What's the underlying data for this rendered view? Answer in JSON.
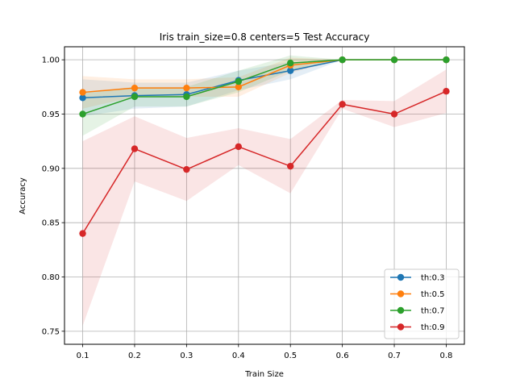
{
  "chart_data": {
    "type": "line",
    "title": "Iris train_size=0.8 centers=5 Test Accuracy",
    "xlabel": "Train Size",
    "ylabel": "Accuracy",
    "x": [
      0.1,
      0.2,
      0.3,
      0.4,
      0.5,
      0.6,
      0.7,
      0.8
    ],
    "x_ticks": [
      "0.1",
      "0.2",
      "0.3",
      "0.4",
      "0.5",
      "0.6",
      "0.7",
      "0.8"
    ],
    "y_ticks": [
      "0.75",
      "0.80",
      "0.85",
      "0.90",
      "0.95",
      "1.00"
    ],
    "y_tick_values": [
      0.75,
      0.8,
      0.85,
      0.9,
      0.95,
      1.0
    ],
    "xlim": [
      0.065,
      0.835
    ],
    "ylim": [
      0.738,
      1.012
    ],
    "grid": true,
    "legend_position": "lower-right",
    "series": [
      {
        "name": "th:0.3",
        "color": "#1f77b4",
        "values": [
          0.965,
          0.967,
          0.968,
          0.981,
          0.99,
          1.0,
          1.0,
          1.0
        ],
        "lower": [
          0.948,
          0.955,
          0.957,
          0.972,
          0.982,
          1.0,
          1.0,
          1.0
        ],
        "upper": [
          0.982,
          0.979,
          0.979,
          0.99,
          0.998,
          1.0,
          1.0,
          1.0
        ]
      },
      {
        "name": "th:0.5",
        "color": "#ff7f0e",
        "values": [
          0.97,
          0.974,
          0.974,
          0.975,
          0.995,
          1.0,
          1.0,
          1.0
        ],
        "lower": [
          0.955,
          0.966,
          0.966,
          0.966,
          0.988,
          1.0,
          1.0,
          1.0
        ],
        "upper": [
          0.985,
          0.982,
          0.982,
          0.984,
          1.002,
          1.0,
          1.0,
          1.0
        ]
      },
      {
        "name": "th:0.7",
        "color": "#2ca02c",
        "values": [
          0.95,
          0.966,
          0.966,
          0.98,
          0.997,
          1.0,
          1.0,
          1.0
        ],
        "lower": [
          0.93,
          0.957,
          0.957,
          0.97,
          0.99,
          1.0,
          1.0,
          1.0
        ],
        "upper": [
          0.97,
          0.975,
          0.975,
          0.99,
          1.004,
          1.0,
          1.0,
          1.0
        ]
      },
      {
        "name": "th:0.9",
        "color": "#d62728",
        "values": [
          0.84,
          0.918,
          0.899,
          0.92,
          0.902,
          0.959,
          0.95,
          0.971
        ],
        "lower": [
          0.755,
          0.888,
          0.87,
          0.903,
          0.877,
          0.955,
          0.938,
          0.951
        ],
        "upper": [
          0.925,
          0.948,
          0.928,
          0.937,
          0.927,
          0.963,
          0.962,
          0.991
        ]
      }
    ]
  }
}
